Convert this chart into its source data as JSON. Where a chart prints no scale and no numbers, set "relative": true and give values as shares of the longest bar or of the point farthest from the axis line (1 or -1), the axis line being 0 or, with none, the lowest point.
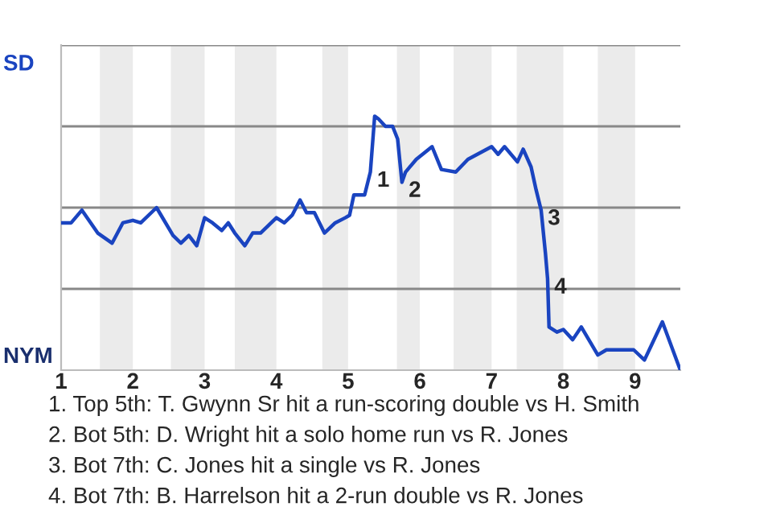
{
  "chart_data": {
    "type": "line",
    "relative": true,
    "x": [
      1.0,
      1.14,
      1.29,
      1.51,
      1.71,
      1.86,
      2.0,
      2.11,
      2.33,
      2.56,
      2.67,
      2.78,
      2.89,
      3.0,
      3.11,
      3.24,
      3.33,
      3.42,
      3.56,
      3.67,
      3.78,
      4.0,
      4.11,
      4.22,
      4.33,
      4.42,
      4.53,
      4.67,
      4.82,
      4.96,
      5.02,
      5.08,
      5.23,
      5.31,
      5.37,
      5.42,
      5.52,
      5.62,
      5.69,
      5.75,
      5.8,
      5.95,
      6.17,
      6.3,
      6.5,
      6.67,
      7.0,
      7.09,
      7.18,
      7.36,
      7.44,
      7.55,
      7.62,
      7.69,
      7.75,
      7.78,
      7.8,
      7.91,
      8.0,
      8.13,
      8.25,
      8.48,
      8.6,
      8.98,
      9.13,
      9.23,
      9.38,
      9.63
    ],
    "series": [
      {
        "color": "#1a44c0",
        "values": [
          0.58,
          0.58,
          0.63,
          0.54,
          0.5,
          0.58,
          0.59,
          0.58,
          0.64,
          0.53,
          0.5,
          0.53,
          0.49,
          0.6,
          0.58,
          0.55,
          0.58,
          0.54,
          0.49,
          0.54,
          0.54,
          0.6,
          0.58,
          0.61,
          0.67,
          0.62,
          0.62,
          0.54,
          0.58,
          0.6,
          0.61,
          0.69,
          0.69,
          0.78,
          1,
          0.99,
          0.96,
          0.96,
          0.91,
          0.74,
          0.78,
          0.83,
          0.88,
          0.79,
          0.78,
          0.83,
          0.88,
          0.85,
          0.88,
          0.82,
          0.87,
          0.8,
          0.71,
          0.63,
          0.46,
          0.36,
          0.17,
          0.15,
          0.16,
          0.12,
          0.17,
          0.06,
          0.08,
          0.08,
          0.04,
          0.1,
          0.19,
          0
        ]
      }
    ],
    "xlim": [
      1,
      9.63
    ],
    "xticks": [
      1,
      2,
      3,
      4,
      5,
      6,
      7,
      8,
      9
    ],
    "bands": [
      {
        "axis": "x",
        "from": 1.54,
        "to": 2.0,
        "color": "#ebebeb"
      },
      {
        "axis": "x",
        "from": 2.53,
        "to": 3.0,
        "color": "#ebebeb"
      },
      {
        "axis": "x",
        "from": 3.42,
        "to": 4.0,
        "color": "#ebebeb"
      },
      {
        "axis": "x",
        "from": 4.64,
        "to": 5.0,
        "color": "#ebebeb"
      },
      {
        "axis": "x",
        "from": 5.68,
        "to": 6.0,
        "color": "#ebebeb"
      },
      {
        "axis": "x",
        "from": 6.47,
        "to": 7.0,
        "color": "#ebebeb"
      },
      {
        "axis": "x",
        "from": 7.35,
        "to": 8.0,
        "color": "#ebebeb"
      },
      {
        "axis": "x",
        "from": 8.48,
        "to": 9.0,
        "color": "#ebebeb"
      }
    ],
    "grid": "y",
    "marker": "none",
    "line_style": "solid",
    "annotations": [
      "SD",
      "NYM",
      {
        "text": "1",
        "x": 5.31,
        "y": 0.78
      },
      {
        "text": "2",
        "x": 5.75,
        "y": 0.74
      },
      {
        "text": "3",
        "x": 7.69,
        "y": 0.63
      },
      {
        "text": "4",
        "x": 7.78,
        "y": 0.36
      },
      "1. Top 5th: T. Gwynn Sr hit a run-scoring double vs H. Smith",
      "2. Bot 5th: D. Wright hit a solo home run vs R. Jones",
      "3. Bot 7th: C. Jones hit a single vs R. Jones",
      "4. Bot 7th: B. Harrelson hit a 2-run double vs R. Jones"
    ]
  }
}
